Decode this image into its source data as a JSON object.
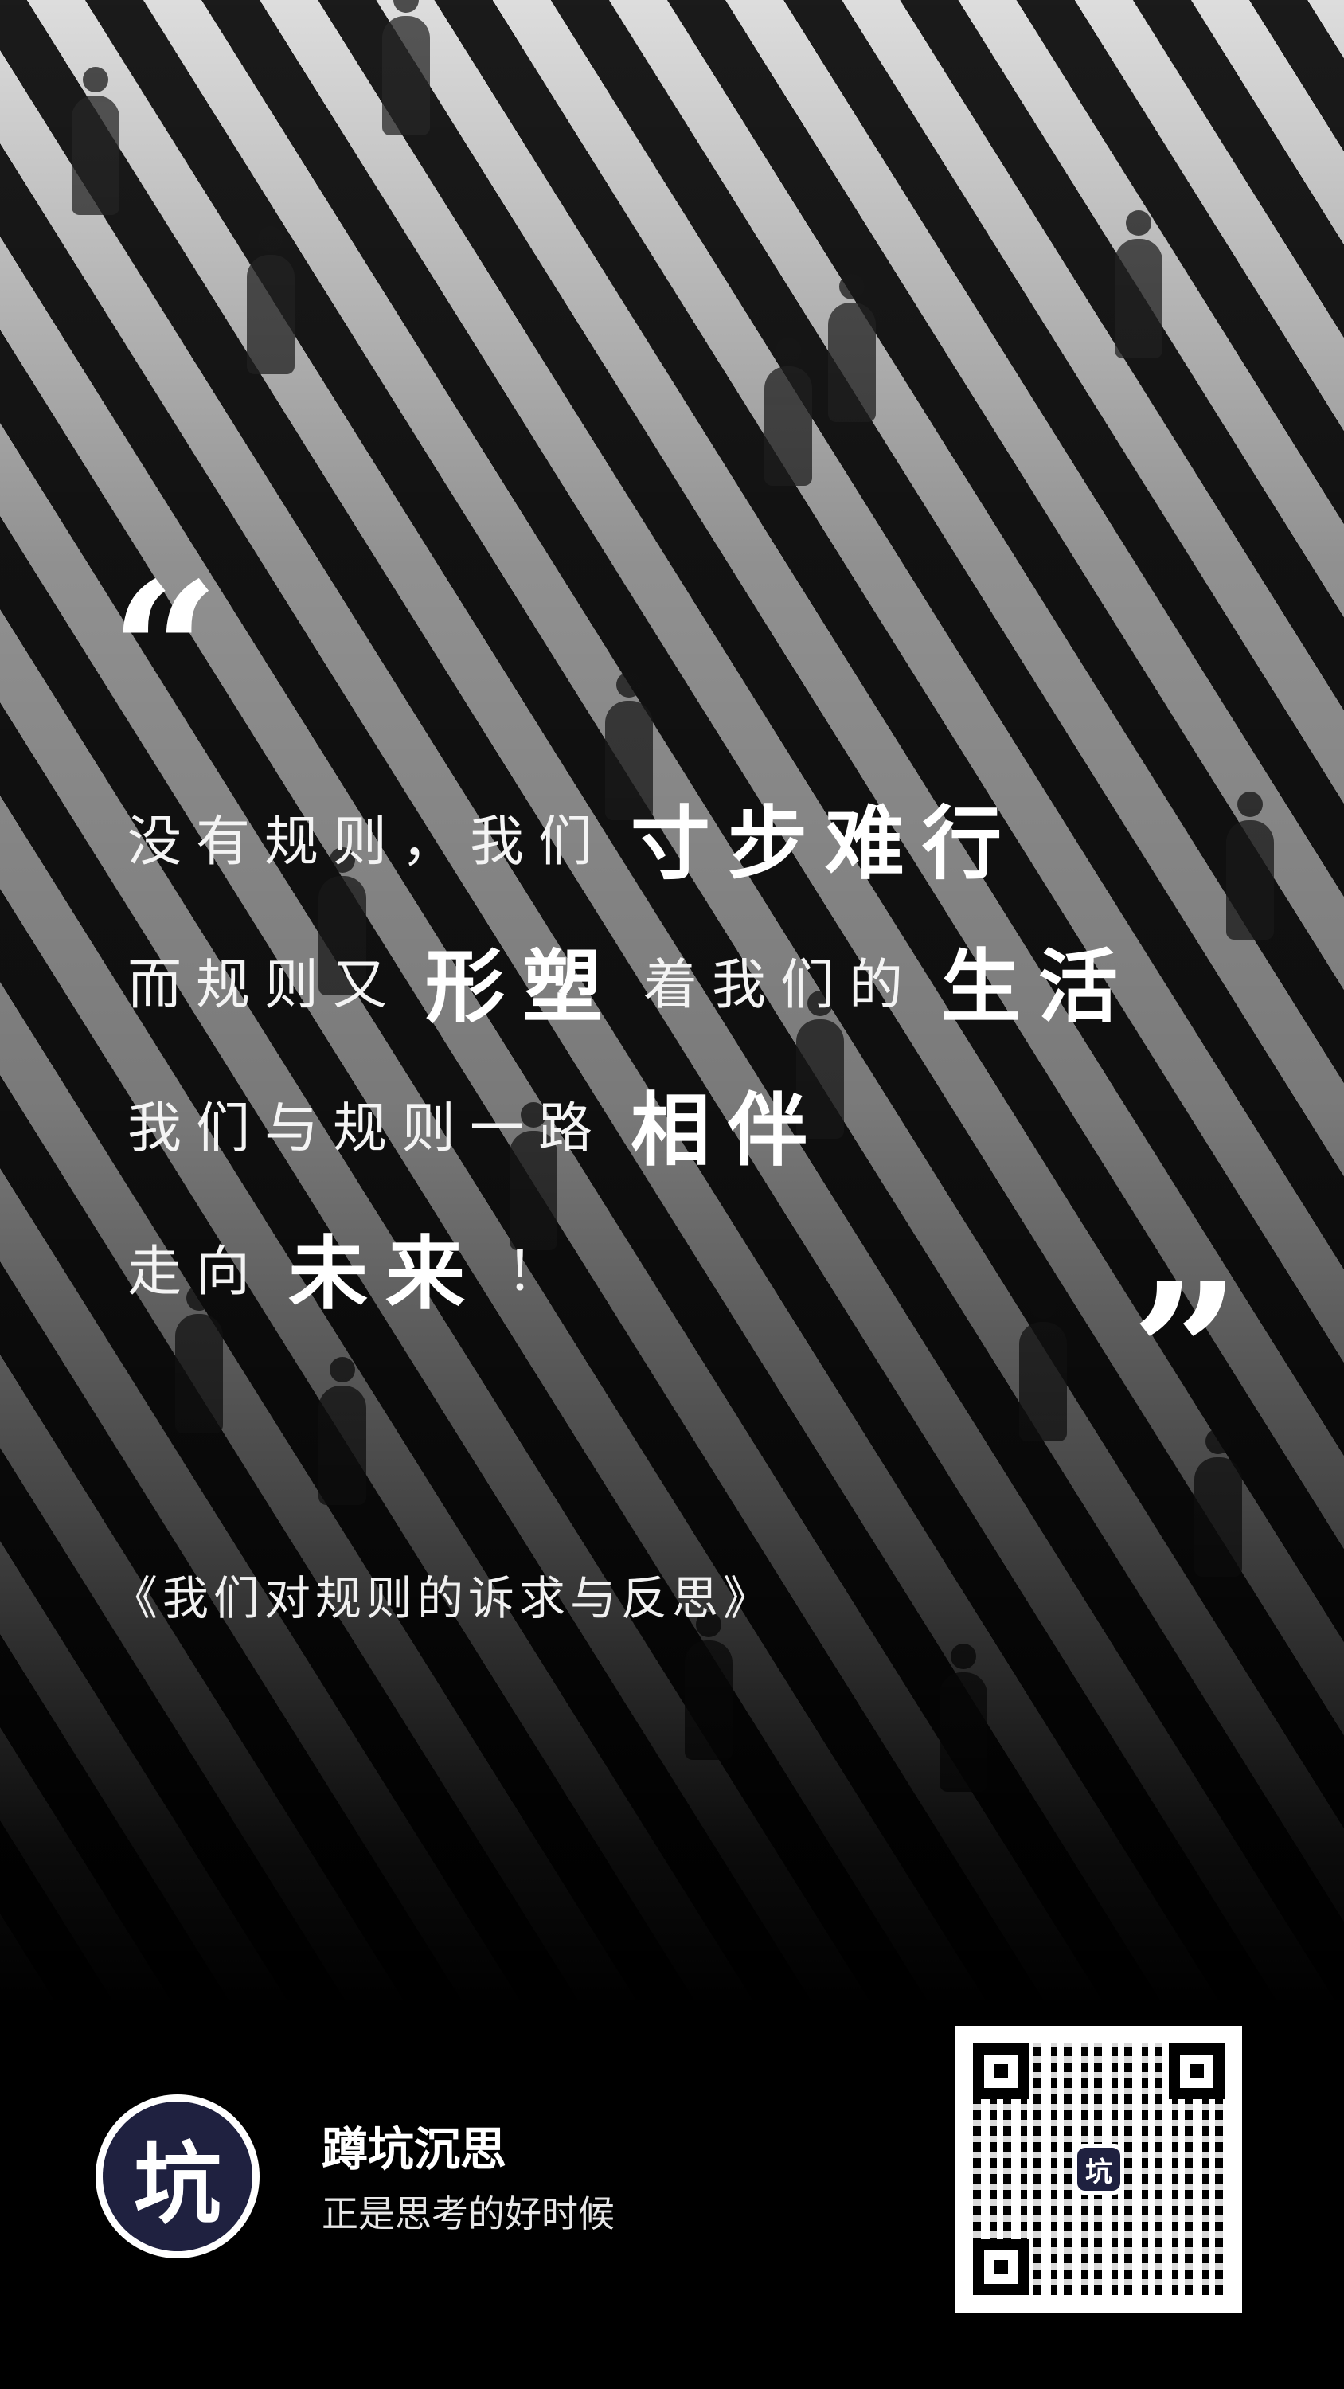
{
  "poster": {
    "open_quote": "“",
    "close_quote": "”",
    "lines": [
      {
        "seg1": "没有规则，我们",
        "bold1": "寸步难行",
        "seg2": "",
        "bold2": ""
      },
      {
        "seg1": "而规则又",
        "bold1": "形塑",
        "seg2": "着我们的",
        "bold2": "生活"
      },
      {
        "seg1": "我们与规则一路",
        "bold1": "相伴",
        "seg2": "",
        "bold2": ""
      },
      {
        "seg1": "走向",
        "bold1": "未来",
        "seg2": "！",
        "bold2": ""
      }
    ],
    "book_title": "《我们对规则的诉求与反思》"
  },
  "footer": {
    "logo_char": "坑",
    "brand_name": "蹲坑沉思",
    "tagline": "正是思考的好时候",
    "qr_center_char": "坑"
  },
  "colors": {
    "background": "#000000",
    "text": "#ffffff",
    "logo_fill": "#1f2140"
  }
}
